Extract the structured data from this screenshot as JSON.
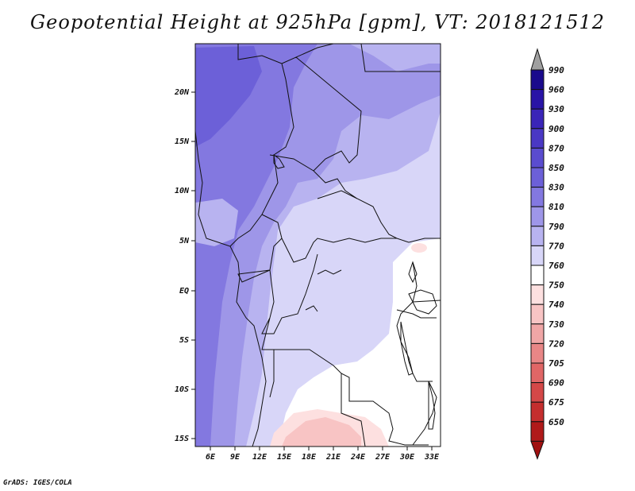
{
  "title": "Geopotential Height at 925hPa [gpm], VT: 2018121512",
  "credit": "GrADS: IGES/COLA",
  "map": {
    "lat_ticks": [
      "20N",
      "15N",
      "10N",
      "5N",
      "EQ",
      "5S",
      "10S",
      "15S"
    ],
    "lon_ticks": [
      "6E",
      "9E",
      "12E",
      "15E",
      "18E",
      "21E",
      "24E",
      "27E",
      "30E",
      "33E"
    ]
  },
  "colorbar": {
    "levels": [
      "990",
      "960",
      "930",
      "900",
      "870",
      "850",
      "830",
      "810",
      "790",
      "770",
      "760",
      "750",
      "740",
      "730",
      "720",
      "705",
      "690",
      "675",
      "650"
    ],
    "colors": [
      "#1a0a8c",
      "#2914a6",
      "#3a25b8",
      "#4a38c4",
      "#5a4ccf",
      "#6c60d8",
      "#8378e0",
      "#9e96e8",
      "#b8b3f0",
      "#d8d6f8",
      "#ffffff",
      "#fde0e0",
      "#f8c4c4",
      "#f0a6a6",
      "#e88686",
      "#e06666",
      "#d44848",
      "#c42e2e",
      "#b01a1a"
    ],
    "top_color": "#a0a0a0",
    "bottom_color": "#a01010"
  }
}
